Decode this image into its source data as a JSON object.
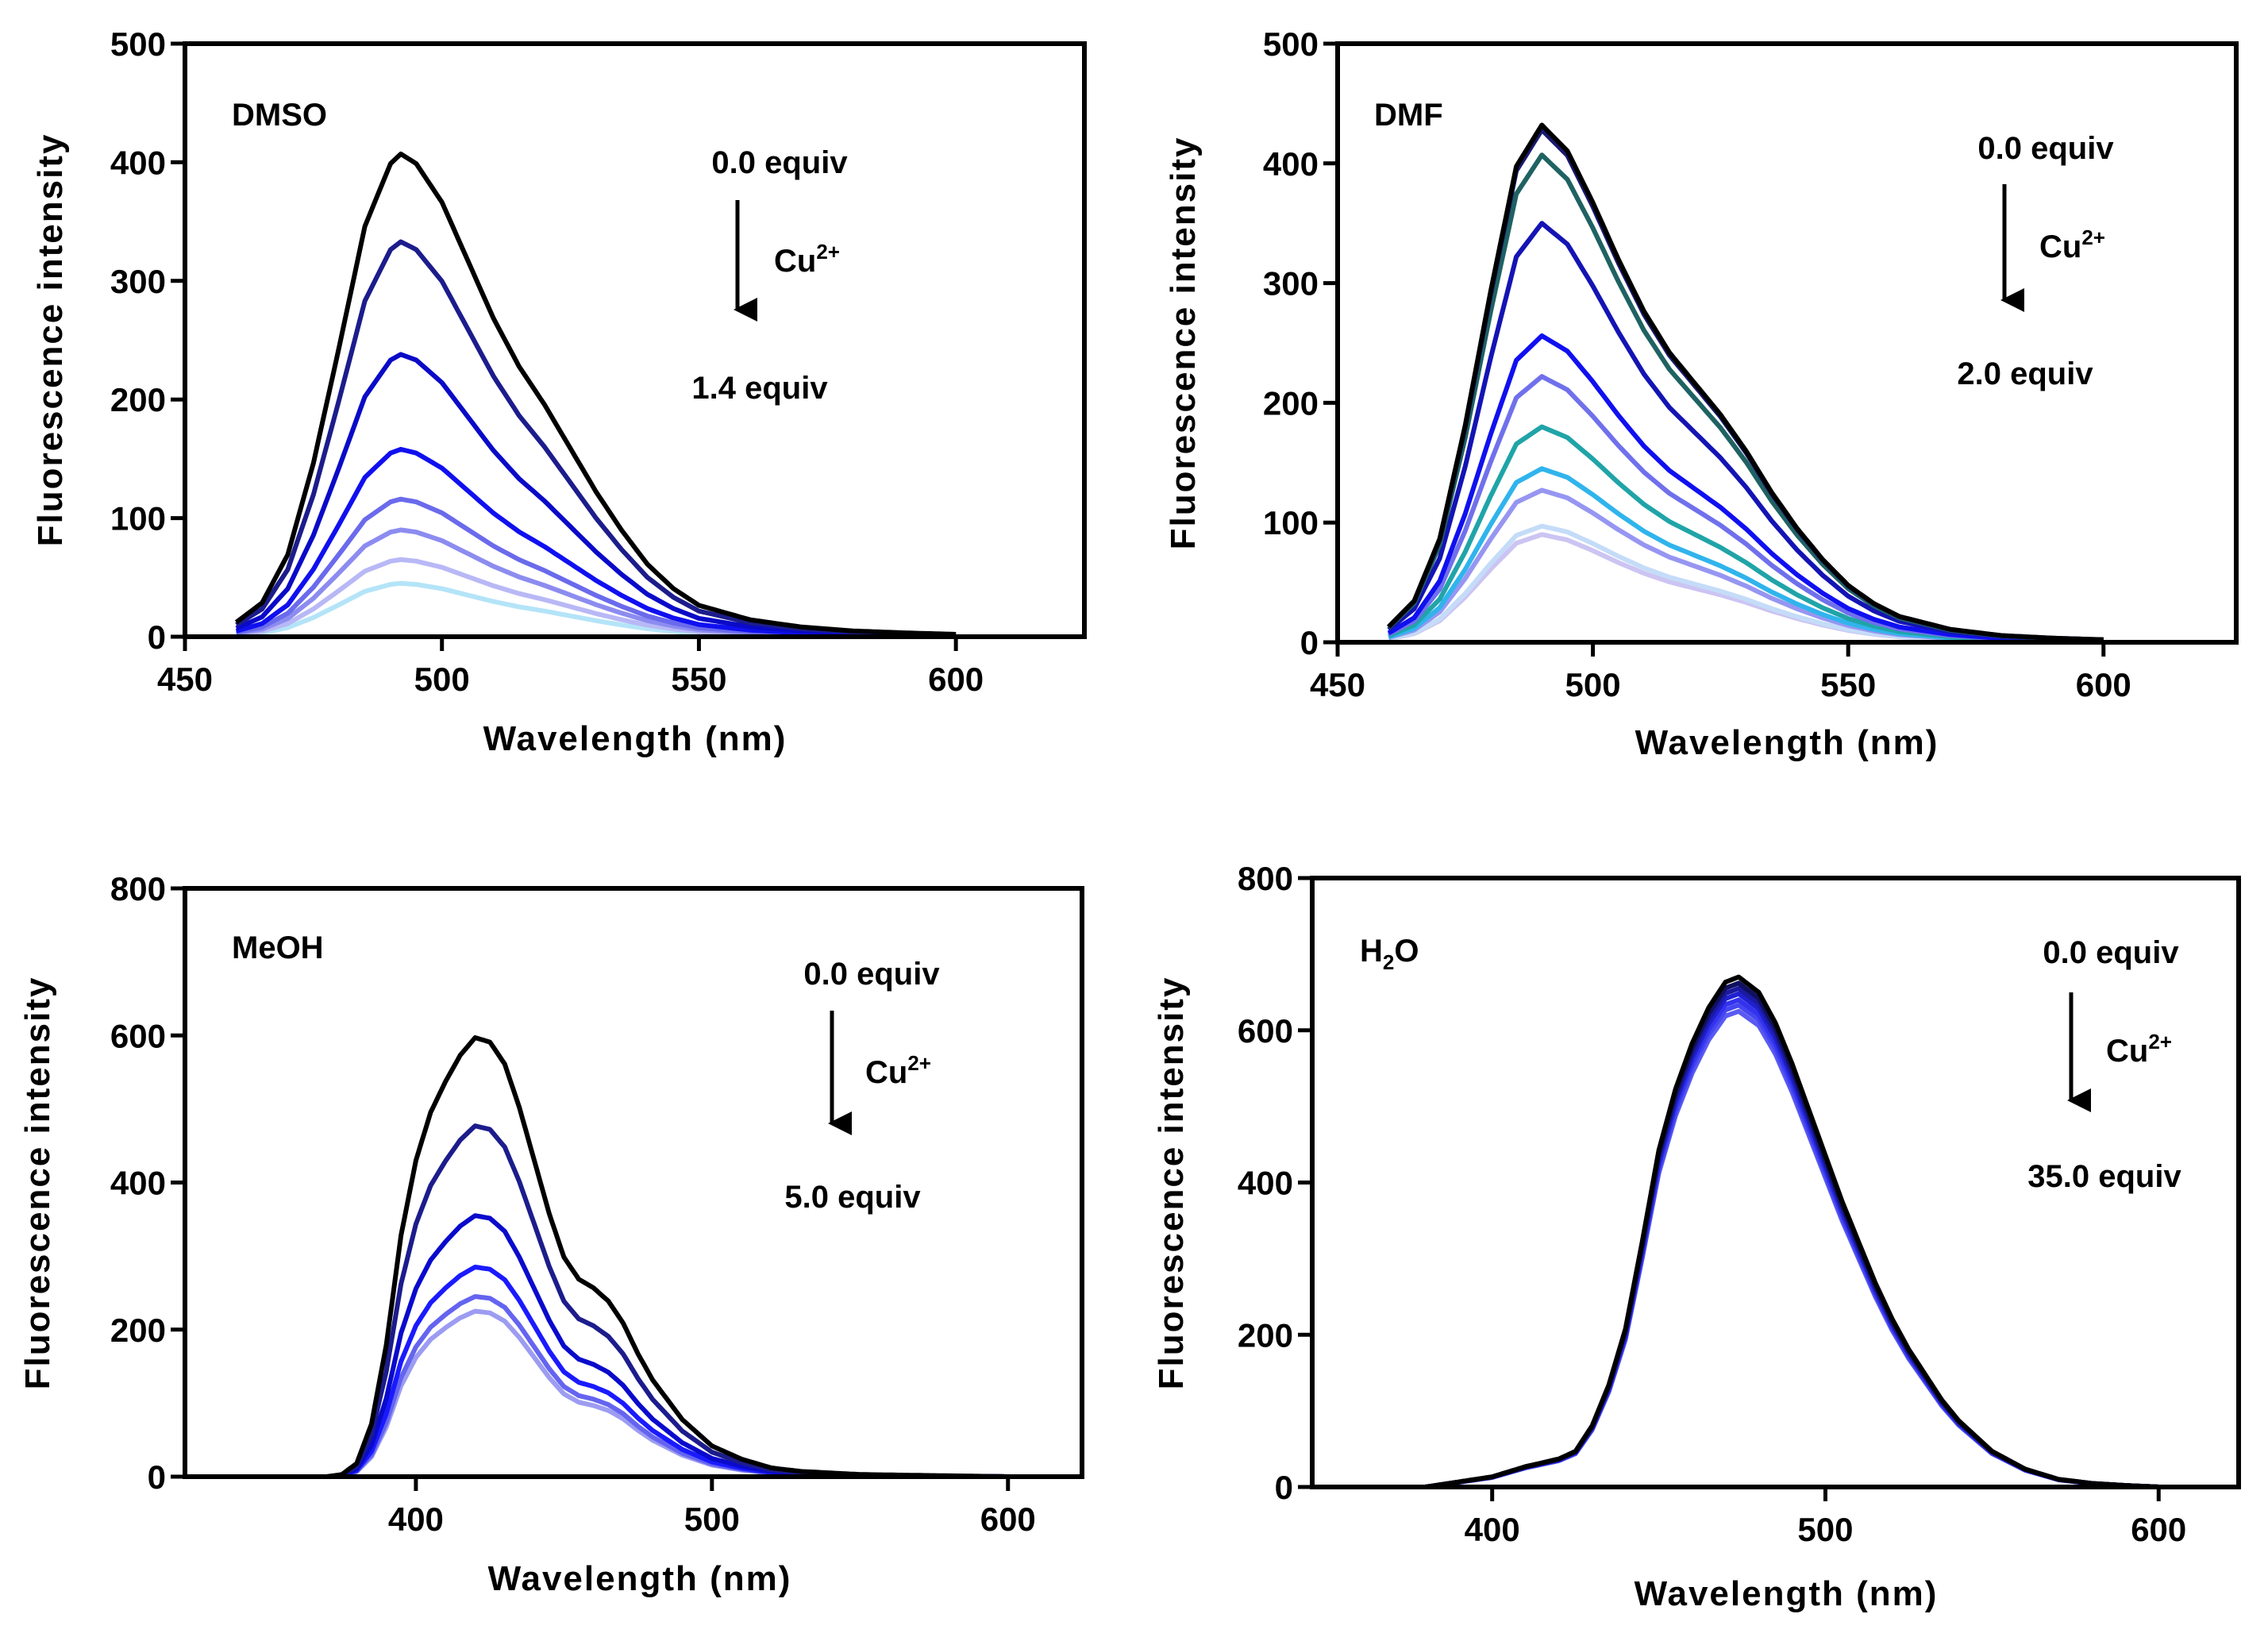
{
  "chart_data": [
    {
      "type": "line",
      "panel_label": "DMSO",
      "xlabel": "Wavelength (nm)",
      "ylabel": "Fluorescence intensity",
      "xlim": [
        450,
        625
      ],
      "ylim": [
        0,
        500
      ],
      "xticks": [
        450,
        500,
        550,
        600
      ],
      "yticks": [
        0,
        100,
        200,
        300,
        400,
        500
      ],
      "annotation": {
        "start": "0.0 equiv",
        "ion": "Cu",
        "charge": "2+",
        "end": "1.4 equiv"
      },
      "x_range": [
        460,
        600
      ],
      "profile_x": [
        460,
        465,
        470,
        475,
        480,
        485,
        490,
        492,
        495,
        500,
        505,
        510,
        515,
        520,
        525,
        530,
        535,
        540,
        545,
        550,
        560,
        570,
        580,
        590,
        600
      ],
      "profile_y": [
        0.03,
        0.07,
        0.17,
        0.36,
        0.6,
        0.85,
        0.98,
        1.0,
        0.98,
        0.9,
        0.78,
        0.66,
        0.56,
        0.48,
        0.39,
        0.3,
        0.22,
        0.15,
        0.1,
        0.065,
        0.035,
        0.02,
        0.012,
        0.008,
        0.005
      ],
      "series": [
        {
          "name": "0.0 equiv",
          "peak": 407,
          "color": "#000000"
        },
        {
          "name": "s2",
          "peak": 333,
          "color": "#1c1c8c"
        },
        {
          "name": "s3",
          "peak": 238,
          "color": "#0a0ac8"
        },
        {
          "name": "s4",
          "peak": 158,
          "color": "#1010f0"
        },
        {
          "name": "s5",
          "peak": 116,
          "color": "#6a6aec"
        },
        {
          "name": "s6",
          "peak": 90,
          "color": "#8c8cf0"
        },
        {
          "name": "s7",
          "peak": 65,
          "color": "#b8b8f6"
        },
        {
          "name": "1.4 equiv",
          "peak": 45,
          "color": "#b4e4f8"
        }
      ]
    },
    {
      "type": "line",
      "panel_label": "DMF",
      "xlabel": "Wavelength (nm)",
      "ylabel": "Fluorescence intensity",
      "xlim": [
        450,
        626
      ],
      "ylim": [
        0,
        500
      ],
      "xticks": [
        450,
        500,
        550,
        600
      ],
      "yticks": [
        0,
        100,
        200,
        300,
        400,
        500
      ],
      "annotation": {
        "start": "0.0 equiv",
        "ion": "Cu",
        "charge": "2+",
        "end": "2.0 equiv"
      },
      "x_range": [
        460,
        600
      ],
      "profile_x": [
        460,
        465,
        470,
        475,
        480,
        485,
        490,
        495,
        500,
        505,
        510,
        515,
        520,
        525,
        530,
        535,
        540,
        545,
        550,
        555,
        560,
        570,
        580,
        590,
        600
      ],
      "profile_y": [
        0.03,
        0.08,
        0.2,
        0.42,
        0.68,
        0.92,
        1.0,
        0.95,
        0.85,
        0.74,
        0.64,
        0.56,
        0.5,
        0.44,
        0.37,
        0.29,
        0.22,
        0.16,
        0.11,
        0.075,
        0.05,
        0.025,
        0.013,
        0.008,
        0.005
      ],
      "series": [
        {
          "name": "0.0 equiv",
          "peak": 432,
          "color": "#000000"
        },
        {
          "name": "s2",
          "peak": 428,
          "color": "#1a1a70"
        },
        {
          "name": "s3",
          "peak": 407,
          "color": "#1f6262"
        },
        {
          "name": "s4",
          "peak": 350,
          "color": "#1414b4"
        },
        {
          "name": "s5",
          "peak": 256,
          "color": "#1010f0"
        },
        {
          "name": "s6",
          "peak": 222,
          "color": "#7070ec"
        },
        {
          "name": "s7",
          "peak": 180,
          "color": "#20a4a8"
        },
        {
          "name": "s8",
          "peak": 145,
          "color": "#30b4ec"
        },
        {
          "name": "s9",
          "peak": 127,
          "color": "#9696f2"
        },
        {
          "name": "s10",
          "peak": 97,
          "color": "#c4dcf8"
        },
        {
          "name": "2.0 equiv",
          "peak": 90,
          "color": "#ccc4f2"
        }
      ]
    },
    {
      "type": "line",
      "panel_label": "MeOH",
      "xlabel": "Wavelength (nm)",
      "ylabel": "Fluorescence intensity",
      "xlim": [
        322,
        625
      ],
      "ylim": [
        0,
        800
      ],
      "xticks": [
        400,
        500,
        600
      ],
      "yticks": [
        0,
        200,
        400,
        600,
        800
      ],
      "annotation": {
        "start": "0.0 equiv",
        "ion": "Cu",
        "charge": "2+",
        "end": "5.0 equiv"
      },
      "x_range": [
        360,
        600
      ],
      "profile_x": [
        360,
        370,
        375,
        380,
        385,
        390,
        395,
        400,
        405,
        410,
        415,
        420,
        425,
        430,
        435,
        440,
        445,
        450,
        455,
        460,
        465,
        470,
        475,
        480,
        490,
        500,
        510,
        520,
        530,
        550,
        600
      ],
      "profile_y": [
        0,
        0,
        0.005,
        0.03,
        0.12,
        0.3,
        0.55,
        0.72,
        0.83,
        0.9,
        0.96,
        1.0,
        0.99,
        0.94,
        0.84,
        0.72,
        0.6,
        0.5,
        0.45,
        0.43,
        0.4,
        0.35,
        0.28,
        0.22,
        0.13,
        0.07,
        0.04,
        0.02,
        0.012,
        0.005,
        0
      ],
      "series": [
        {
          "name": "0.0 equiv",
          "peak": 597,
          "color": "#000000"
        },
        {
          "name": "s2",
          "peak": 477,
          "color": "#1c1c8c"
        },
        {
          "name": "s3",
          "peak": 355,
          "color": "#0a0acc"
        },
        {
          "name": "s4",
          "peak": 285,
          "color": "#1a1aff"
        },
        {
          "name": "s5",
          "peak": 245,
          "color": "#6464f0"
        },
        {
          "name": "5.0 equiv",
          "peak": 225,
          "color": "#9c9cf2"
        }
      ]
    },
    {
      "type": "line",
      "panel_label_parts": {
        "base": "H",
        "sub": "2",
        "rest": "O"
      },
      "xlabel": "Wavelength (nm)",
      "ylabel": "Fluorescence intensity",
      "xlim": [
        346,
        624
      ],
      "ylim": [
        0,
        800
      ],
      "xticks": [
        400,
        500,
        600
      ],
      "yticks": [
        0,
        200,
        400,
        600,
        800
      ],
      "annotation": {
        "start": "0.0 equiv",
        "ion": "Cu",
        "charge": "2+",
        "end": "35.0 equiv"
      },
      "x_range": [
        360,
        600
      ],
      "profile_x": [
        360,
        380,
        390,
        400,
        410,
        420,
        425,
        430,
        435,
        440,
        445,
        450,
        455,
        460,
        465,
        470,
        474,
        480,
        485,
        490,
        495,
        500,
        505,
        510,
        515,
        520,
        525,
        530,
        535,
        540,
        550,
        560,
        570,
        580,
        590,
        600
      ],
      "profile_y": [
        0,
        0,
        0.01,
        0.02,
        0.04,
        0.055,
        0.07,
        0.12,
        0.2,
        0.31,
        0.48,
        0.66,
        0.78,
        0.87,
        0.94,
        0.99,
        1.0,
        0.97,
        0.91,
        0.83,
        0.74,
        0.65,
        0.56,
        0.48,
        0.4,
        0.33,
        0.27,
        0.22,
        0.17,
        0.13,
        0.07,
        0.035,
        0.015,
        0.007,
        0.003,
        0
      ],
      "series": [
        {
          "name": "0.0 equiv",
          "peak": 670,
          "color": "#000000"
        },
        {
          "name": "s2",
          "peak": 662,
          "color": "#101060"
        },
        {
          "name": "s3",
          "peak": 655,
          "color": "#1a1aa0"
        },
        {
          "name": "s4",
          "peak": 648,
          "color": "#2020d0"
        },
        {
          "name": "s5",
          "peak": 640,
          "color": "#3333ee"
        },
        {
          "name": "s6",
          "peak": 633,
          "color": "#4646f0"
        },
        {
          "name": "35.0 equiv",
          "peak": 625,
          "color": "#5a5af2"
        }
      ]
    }
  ]
}
